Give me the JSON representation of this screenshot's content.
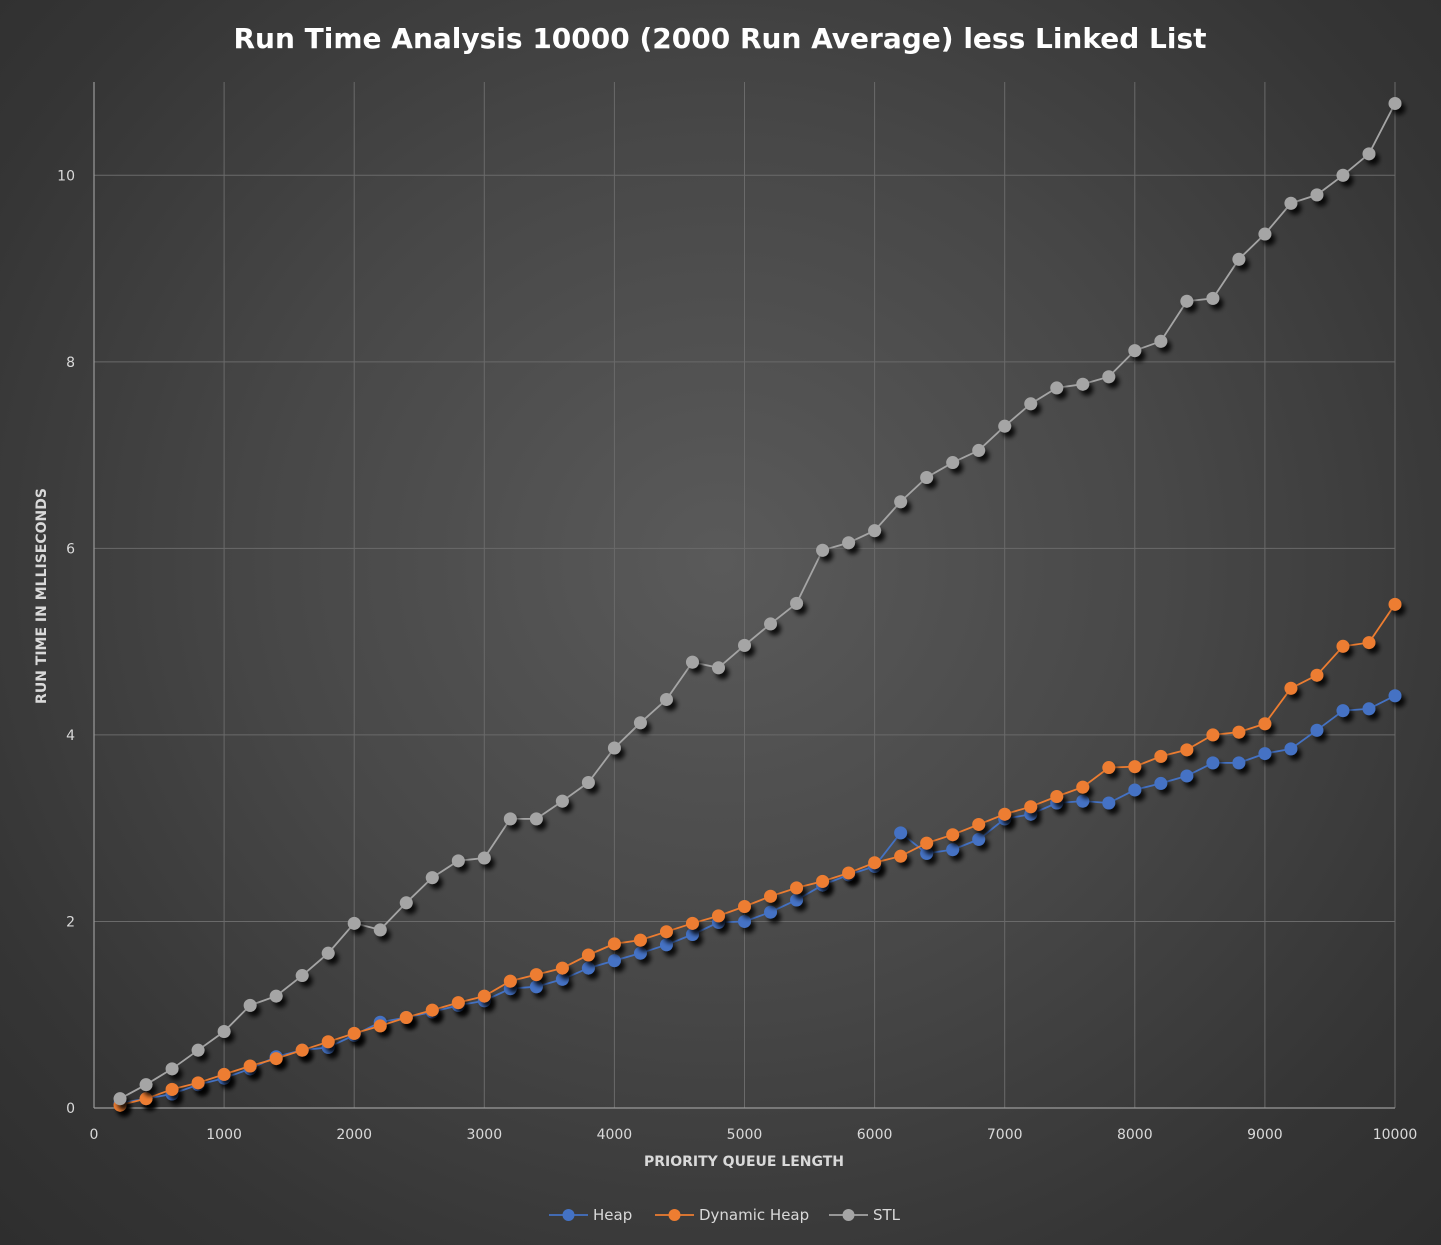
{
  "chart_data": {
    "type": "line",
    "title": "Run Time Analysis 10000 (2000 Run Average) less Linked List",
    "xlabel": "PRIORITY QUEUE LENGTH",
    "ylabel": "RUN TIME IN MLLISECONDS",
    "xlim": [
      0,
      10000
    ],
    "ylim": [
      0,
      11
    ],
    "xticks": [
      0,
      1000,
      2000,
      3000,
      4000,
      5000,
      6000,
      7000,
      8000,
      9000,
      10000
    ],
    "yticks": [
      0,
      2,
      4,
      6,
      8,
      10
    ],
    "grid": true,
    "legend": "bottom",
    "x": [
      200,
      400,
      600,
      800,
      1000,
      1200,
      1400,
      1600,
      1800,
      2000,
      2200,
      2400,
      2600,
      2800,
      3000,
      3200,
      3400,
      3600,
      3800,
      4000,
      4200,
      4400,
      4600,
      4800,
      5000,
      5200,
      5400,
      5600,
      5800,
      6000,
      6200,
      6400,
      6600,
      6800,
      7000,
      7200,
      7400,
      7600,
      7800,
      8000,
      8200,
      8400,
      8600,
      8800,
      9000,
      9200,
      9400,
      9600,
      9800,
      10000
    ],
    "series": [
      {
        "name": "Heap",
        "color": "#4472c4",
        "values": [
          0.05,
          0.1,
          0.15,
          0.25,
          0.32,
          0.42,
          0.55,
          0.62,
          0.65,
          0.78,
          0.92,
          0.97,
          1.03,
          1.1,
          1.15,
          1.28,
          1.3,
          1.38,
          1.5,
          1.58,
          1.66,
          1.75,
          1.86,
          1.99,
          2.0,
          2.1,
          2.23,
          2.39,
          2.5,
          2.59,
          2.95,
          2.73,
          2.77,
          2.88,
          3.1,
          3.15,
          3.27,
          3.29,
          3.27,
          3.41,
          3.48,
          3.56,
          3.7,
          3.7,
          3.8,
          3.85,
          4.05,
          4.26,
          4.28,
          4.42
        ]
      },
      {
        "name": "Dynamic Heap",
        "color": "#ed7d31",
        "values": [
          0.03,
          0.1,
          0.2,
          0.27,
          0.36,
          0.45,
          0.53,
          0.62,
          0.71,
          0.8,
          0.88,
          0.97,
          1.05,
          1.13,
          1.2,
          1.36,
          1.43,
          1.5,
          1.64,
          1.76,
          1.8,
          1.89,
          1.98,
          2.06,
          2.16,
          2.27,
          2.36,
          2.43,
          2.52,
          2.63,
          2.7,
          2.84,
          2.93,
          3.04,
          3.15,
          3.23,
          3.34,
          3.44,
          3.65,
          3.66,
          3.77,
          3.84,
          4.0,
          4.03,
          4.12,
          4.5,
          4.64,
          4.95,
          4.99,
          5.4
        ]
      },
      {
        "name": "STL",
        "color": "#a5a5a5",
        "values": [
          0.1,
          0.25,
          0.42,
          0.62,
          0.82,
          1.1,
          1.2,
          1.42,
          1.66,
          1.98,
          1.91,
          2.2,
          2.47,
          2.65,
          2.68,
          3.1,
          3.1,
          3.29,
          3.49,
          3.86,
          4.13,
          4.38,
          4.78,
          4.72,
          4.96,
          5.19,
          5.41,
          5.98,
          6.06,
          6.19,
          6.5,
          6.76,
          6.92,
          7.05,
          7.31,
          7.55,
          7.72,
          7.76,
          7.84,
          8.12,
          8.22,
          8.65,
          8.68,
          9.1,
          9.37,
          9.7,
          9.79,
          10.0,
          10.23,
          10.77
        ]
      }
    ]
  }
}
